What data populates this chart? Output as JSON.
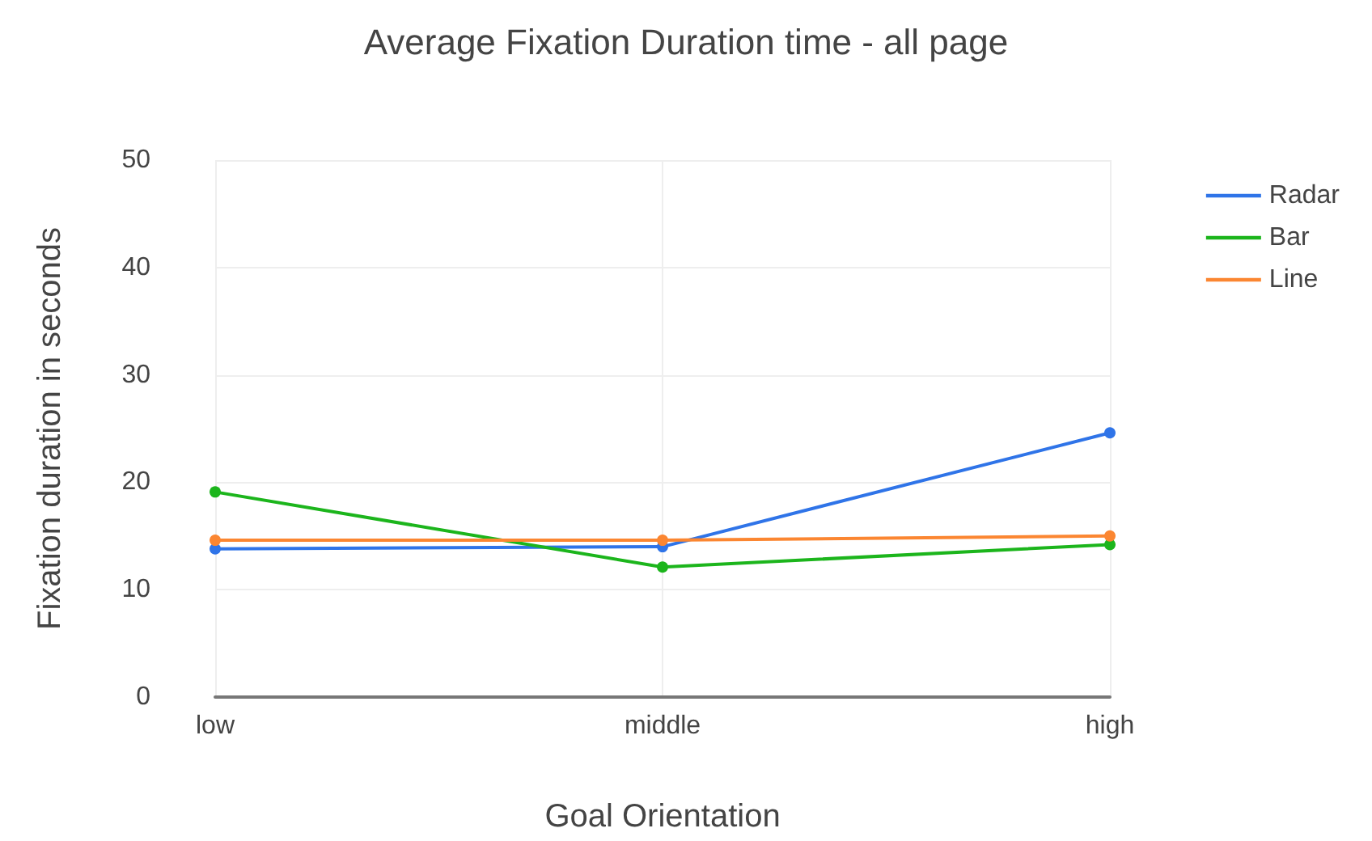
{
  "chart_data": {
    "type": "line",
    "title": "Average Fixation Duration time - all page",
    "xlabel": "Goal Orientation",
    "ylabel": "Fixation duration in seconds",
    "categories": [
      "low",
      "middle",
      "high"
    ],
    "series": [
      {
        "name": "Radar",
        "color": "#2f74e8",
        "values": [
          13.8,
          14.0,
          24.6
        ]
      },
      {
        "name": "Bar",
        "color": "#1cb51c",
        "values": [
          19.1,
          12.1,
          14.2
        ]
      },
      {
        "name": "Line",
        "color": "#fb8631",
        "values": [
          14.6,
          14.6,
          15.0
        ]
      }
    ],
    "ylim": [
      0,
      50
    ],
    "yticks": [
      0,
      10,
      20,
      30,
      40,
      50
    ],
    "grid": true,
    "legend": "top right",
    "marker": "circle",
    "line_style": "solid"
  }
}
